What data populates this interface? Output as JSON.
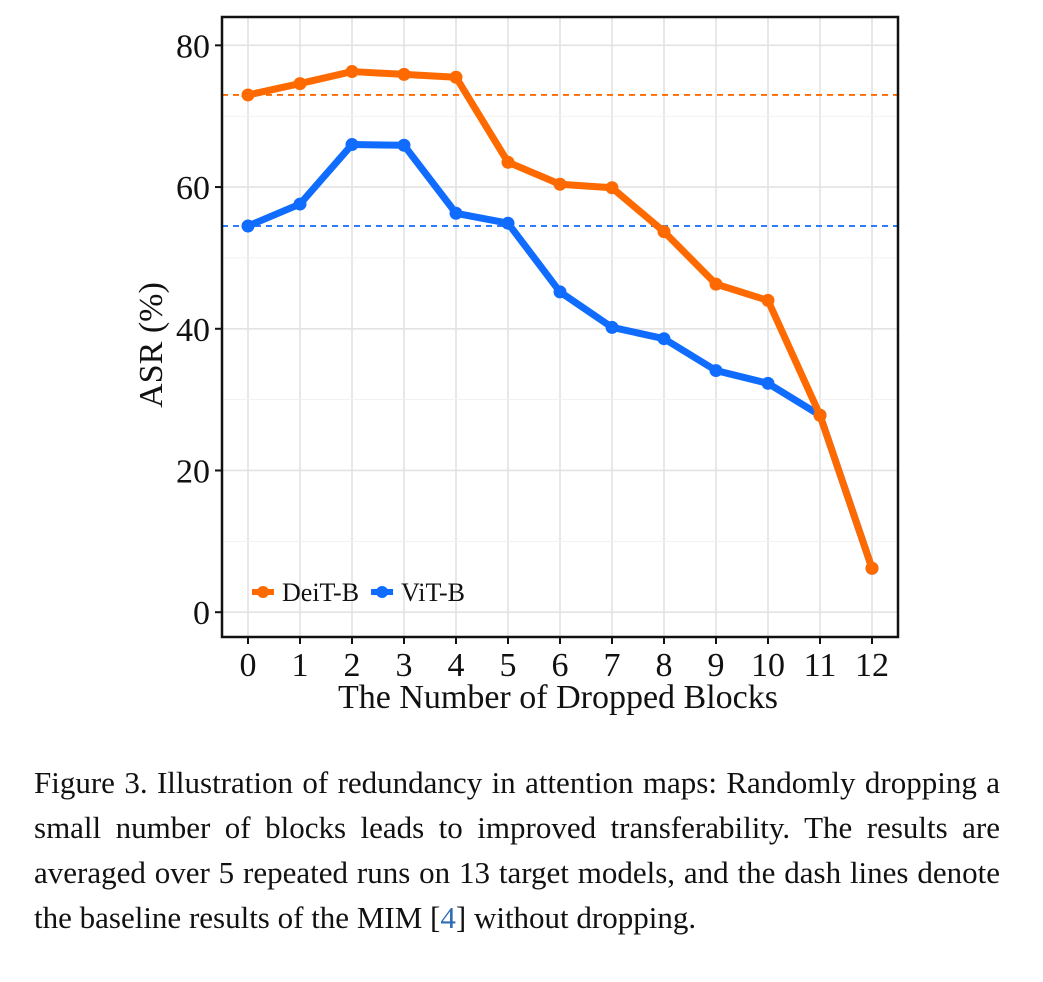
{
  "chart_data": {
    "type": "line",
    "xlabel": "The Number of Dropped Blocks",
    "ylabel": "ASR (%)",
    "xlim": [
      -0.5,
      12.5
    ],
    "ylim": [
      -3.5,
      84
    ],
    "x_ticks": [
      0,
      1,
      2,
      3,
      4,
      5,
      6,
      7,
      8,
      9,
      10,
      11,
      12
    ],
    "y_ticks": [
      0,
      20,
      40,
      60,
      80
    ],
    "grid": true,
    "legend_position": "bottom-left",
    "series": [
      {
        "name": "DeiT-B",
        "color": "#ff6a00",
        "x": [
          0,
          1,
          2,
          3,
          4,
          5,
          6,
          7,
          8,
          9,
          10,
          11,
          12
        ],
        "values": [
          73.0,
          74.6,
          76.3,
          75.9,
          75.5,
          63.5,
          60.4,
          59.9,
          53.7,
          46.3,
          44.0,
          27.8,
          6.2
        ]
      },
      {
        "name": "ViT-B",
        "color": "#0f6cff",
        "x": [
          0,
          1,
          2,
          3,
          4,
          5,
          6,
          7,
          8,
          9,
          10,
          11,
          12
        ],
        "values": [
          54.5,
          57.6,
          66.0,
          65.9,
          56.3,
          54.9,
          45.2,
          40.2,
          38.6,
          34.1,
          32.3,
          27.8,
          6.2
        ]
      }
    ],
    "baselines": [
      {
        "name": "DeiT-B baseline",
        "color": "#ff6a00",
        "value": 73.0
      },
      {
        "name": "ViT-B baseline",
        "color": "#0f6cff",
        "value": 54.5
      }
    ]
  },
  "caption": {
    "text_before_ref": "Figure 3. Illustration of redundancy in attention maps: Randomly dropping a small number of blocks leads to improved transferability.  The results are averaged over 5 repeated runs on 13 target models, and the dash lines denote the baseline results of the MIM ",
    "ref_open": "[",
    "ref_number": "4",
    "ref_close": "]",
    "text_after_ref": " without dropping."
  }
}
